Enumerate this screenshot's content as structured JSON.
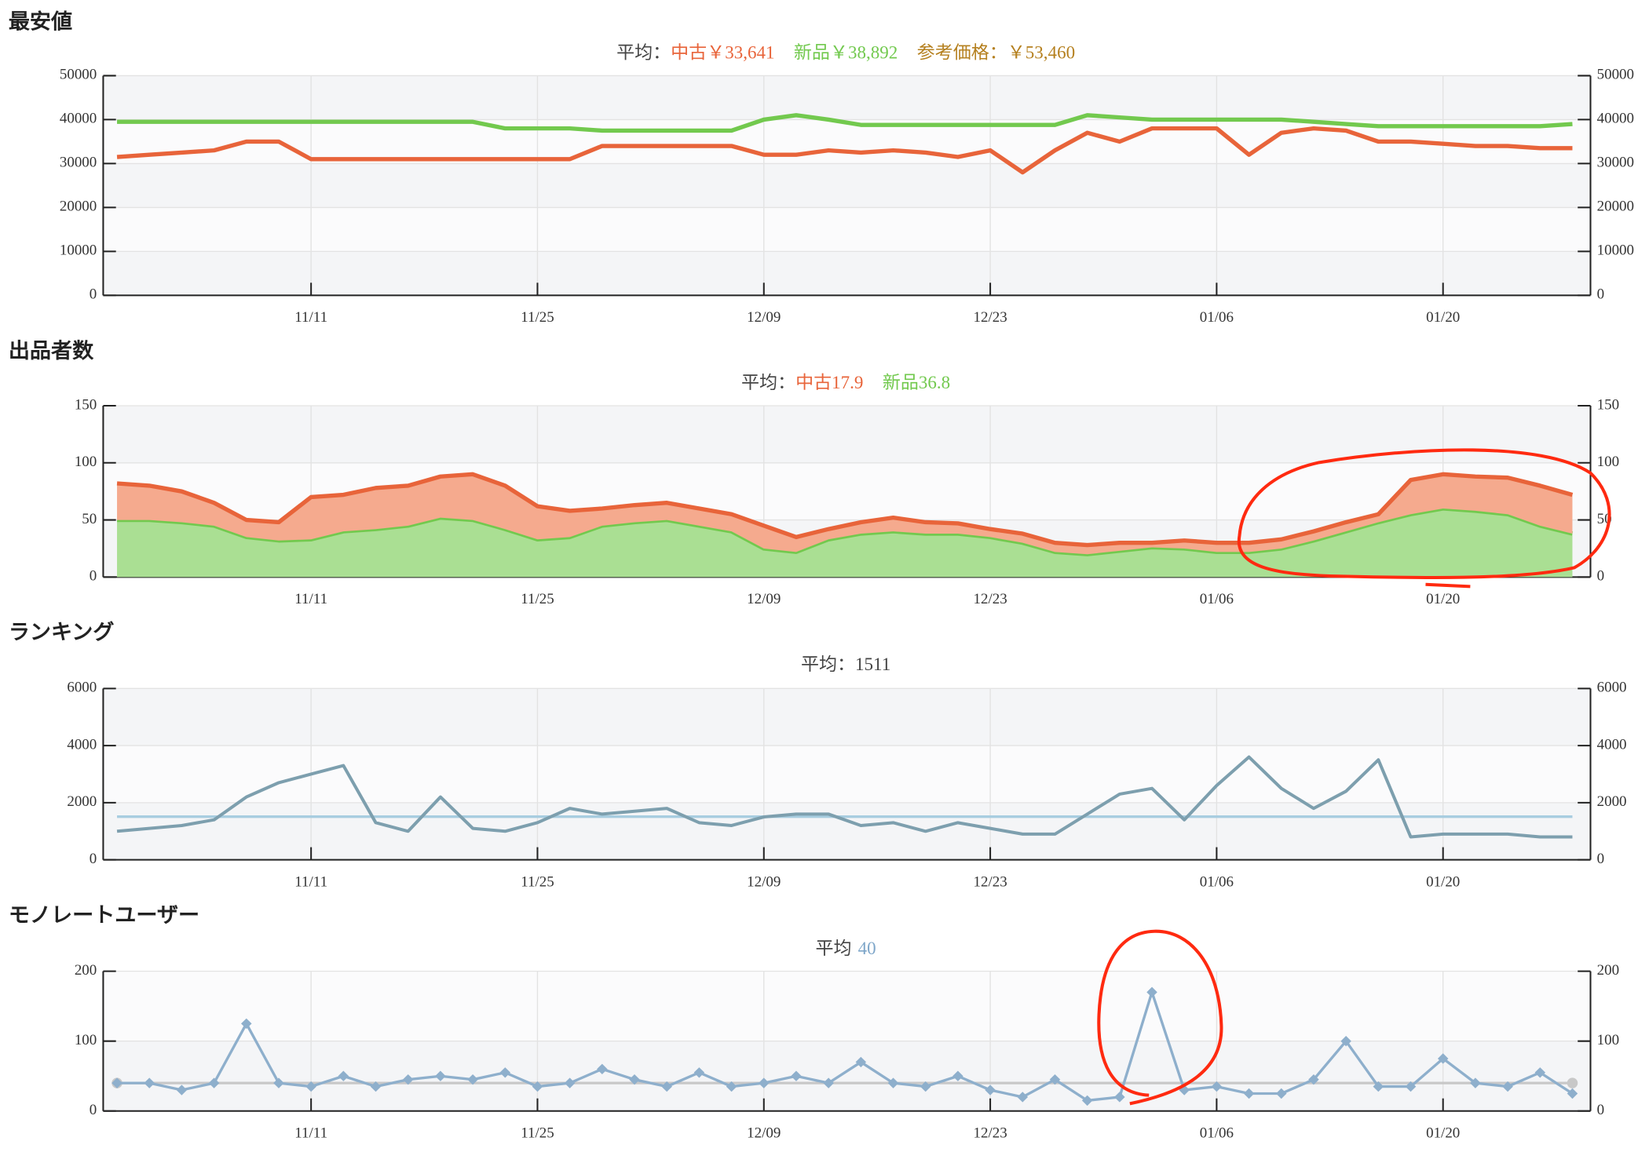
{
  "chart_data": [
    {
      "type": "line",
      "title": "最安値",
      "avg_label": "平均：",
      "categories": [
        null,
        null,
        null,
        null,
        null,
        null,
        "11/11",
        null,
        null,
        null,
        null,
        null,
        null,
        "11/25",
        null,
        null,
        null,
        null,
        null,
        null,
        "12/09",
        null,
        null,
        null,
        null,
        null,
        null,
        "12/23",
        null,
        null,
        null,
        null,
        null,
        null,
        "01/06",
        null,
        null,
        null,
        null,
        null,
        null,
        "01/20",
        null,
        null,
        null,
        null
      ],
      "ylim": [
        0,
        50000
      ],
      "yticks": [
        0,
        10000,
        20000,
        30000,
        40000,
        50000
      ],
      "grid": true,
      "series": [
        {
          "name": "中古",
          "average_label": "￥33,641",
          "color": "#e8643a",
          "values": [
            31500,
            32000,
            32500,
            33000,
            35000,
            35000,
            31000,
            31000,
            31000,
            31000,
            31000,
            31000,
            31000,
            31000,
            31000,
            34000,
            34000,
            34000,
            34000,
            34000,
            32000,
            32000,
            33000,
            32500,
            33000,
            32500,
            31500,
            33000,
            28000,
            33000,
            37000,
            35000,
            38000,
            38000,
            38000,
            32000,
            37000,
            38000,
            37500,
            35000,
            35000,
            34500,
            34000,
            34000,
            33500,
            33500
          ]
        },
        {
          "name": "新品",
          "average_label": "￥38,892",
          "color": "#72c94e",
          "values": [
            39500,
            39500,
            39500,
            39500,
            39500,
            39500,
            39500,
            39500,
            39500,
            39500,
            39500,
            39500,
            38000,
            38000,
            38000,
            37500,
            37500,
            37500,
            37500,
            37500,
            40000,
            41000,
            40000,
            38800,
            38800,
            38800,
            38800,
            38800,
            38800,
            38800,
            41000,
            40500,
            40000,
            40000,
            40000,
            40000,
            40000,
            39500,
            39000,
            38500,
            38500,
            38500,
            38500,
            38500,
            38500,
            39000
          ]
        }
      ],
      "reference": {
        "name": "参考価格：",
        "average_label": "￥53,460",
        "color": "#b5801f"
      }
    },
    {
      "type": "stacked_area",
      "title": "出品者数",
      "avg_label": "平均：",
      "categories": [
        null,
        null,
        null,
        null,
        null,
        null,
        "11/11",
        null,
        null,
        null,
        null,
        null,
        null,
        "11/25",
        null,
        null,
        null,
        null,
        null,
        null,
        "12/09",
        null,
        null,
        null,
        null,
        null,
        null,
        "12/23",
        null,
        null,
        null,
        null,
        null,
        null,
        "01/06",
        null,
        null,
        null,
        null,
        null,
        null,
        "01/20",
        null,
        null,
        null,
        null
      ],
      "ylim": [
        0,
        150
      ],
      "yticks": [
        0,
        50,
        100,
        150
      ],
      "grid": true,
      "series": [
        {
          "name": "中古",
          "average": 17.9,
          "color": "#e8643a",
          "fill": "#f5aa8e",
          "values": [
            32,
            30,
            27,
            20,
            15,
            16,
            37,
            32,
            36,
            35,
            36,
            40,
            38,
            29,
            23,
            15,
            15,
            15,
            15,
            15,
            20,
            13,
            9,
            10,
            12,
            10,
            9,
            7,
            8,
            8,
            8,
            7,
            4,
            7,
            8,
            8,
            8,
            8,
            8,
            7,
            30,
            30,
            30,
            32,
            35,
            34
          ]
        },
        {
          "name": "新品",
          "average": 36.8,
          "color": "#72c94e",
          "fill": "#aadf93",
          "values": [
            50,
            50,
            48,
            45,
            35,
            32,
            33,
            40,
            42,
            45,
            52,
            50,
            42,
            33,
            35,
            45,
            48,
            50,
            45,
            40,
            25,
            22,
            33,
            38,
            40,
            38,
            38,
            35,
            30,
            22,
            20,
            23,
            26,
            25,
            22,
            22,
            25,
            32,
            40,
            48,
            55,
            60,
            58,
            55,
            45,
            38
          ]
        }
      ]
    },
    {
      "type": "line",
      "title": "ランキング",
      "avg_label": "平均：",
      "average": 1511,
      "average_color": "#a8cde0",
      "categories": [
        null,
        null,
        null,
        null,
        null,
        null,
        "11/11",
        null,
        null,
        null,
        null,
        null,
        null,
        "11/25",
        null,
        null,
        null,
        null,
        null,
        null,
        "12/09",
        null,
        null,
        null,
        null,
        null,
        null,
        "12/23",
        null,
        null,
        null,
        null,
        null,
        null,
        "01/06",
        null,
        null,
        null,
        null,
        null,
        null,
        "01/20",
        null,
        null,
        null,
        null
      ],
      "ylim": [
        0,
        6000
      ],
      "yticks": [
        0,
        2000,
        4000,
        6000
      ],
      "grid": true,
      "series": [
        {
          "color": "#7d9fae",
          "values": [
            1000,
            1100,
            1200,
            1400,
            2200,
            2700,
            3000,
            3300,
            1300,
            1000,
            2200,
            1100,
            1000,
            1300,
            1800,
            1600,
            1700,
            1800,
            1300,
            1200,
            1500,
            1600,
            1600,
            1200,
            1300,
            1000,
            1300,
            1100,
            900,
            900,
            1600,
            2300,
            2500,
            1400,
            2600,
            3600,
            2500,
            1800,
            2400,
            3500,
            800,
            900,
            900,
            900,
            800,
            800
          ]
        }
      ]
    },
    {
      "type": "line_marker",
      "title": "モノレートユーザー",
      "avg_label": "平均",
      "average": 40,
      "average_color": "#c8c8c8",
      "average_text_color": "#7ea6c9",
      "categories": [
        null,
        null,
        null,
        null,
        null,
        null,
        "11/11",
        null,
        null,
        null,
        null,
        null,
        null,
        "11/25",
        null,
        null,
        null,
        null,
        null,
        null,
        "12/09",
        null,
        null,
        null,
        null,
        null,
        null,
        "12/23",
        null,
        null,
        null,
        null,
        null,
        null,
        "01/06",
        null,
        null,
        null,
        null,
        null,
        null,
        "01/20",
        null,
        null,
        null,
        null
      ],
      "ylim": [
        0,
        200
      ],
      "yticks": [
        0,
        100,
        200
      ],
      "grid": true,
      "series": [
        {
          "color": "#8eafcc",
          "values": [
            40,
            40,
            30,
            40,
            125,
            40,
            35,
            50,
            35,
            45,
            50,
            45,
            55,
            35,
            40,
            60,
            45,
            35,
            55,
            35,
            40,
            50,
            40,
            70,
            40,
            35,
            50,
            30,
            20,
            45,
            15,
            20,
            170,
            30,
            35,
            25,
            25,
            45,
            100,
            35,
            35,
            75,
            40,
            35,
            55,
            25
          ]
        }
      ]
    }
  ]
}
